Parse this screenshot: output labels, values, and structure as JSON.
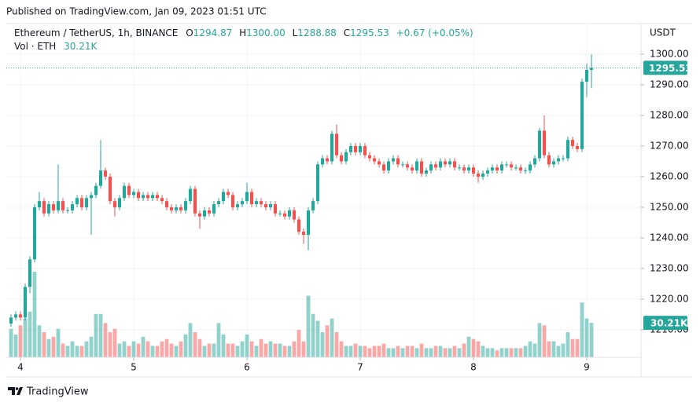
{
  "published": "Published on TradingView.com, Jan 09, 2023 01:51 UTC",
  "brand": "TradingView",
  "chart_data": {
    "type": "candlestick",
    "title": "Ethereum / TetherUS, 1h, BINANCE",
    "ohlc_prefixes": [
      "O",
      "H",
      "L",
      "C"
    ],
    "last_labels": {
      "open": "1294.87",
      "high": "1300.00",
      "low": "1288.88",
      "close": "1295.53"
    },
    "change": "+0.67 (+0.05%)",
    "currency": "USDT",
    "up_color": "#26a69a",
    "down_color": "#ef5350",
    "x": [
      -2,
      -1,
      0,
      1,
      2,
      3,
      4,
      5,
      6,
      7,
      8,
      9,
      10,
      11,
      12,
      13,
      14,
      15,
      16,
      17,
      18,
      19,
      20,
      21,
      22,
      23,
      24,
      25,
      26,
      27,
      28,
      29,
      30,
      31,
      32,
      33,
      34,
      35,
      36,
      37,
      38,
      39,
      40,
      41,
      42,
      43,
      44,
      45,
      46,
      47,
      48,
      49,
      50,
      51,
      52,
      53,
      54,
      55,
      56,
      57,
      58,
      59,
      60,
      61,
      62,
      63,
      64,
      65,
      66,
      67,
      68,
      69,
      70,
      71,
      72,
      73,
      74,
      75,
      76,
      77,
      78,
      79,
      80,
      81,
      82,
      83,
      84,
      85,
      86,
      87,
      88,
      89,
      90,
      91,
      92,
      93,
      94,
      95,
      96,
      97,
      98,
      99,
      100,
      101,
      102,
      103,
      104,
      105,
      106,
      107,
      108,
      109,
      110,
      111,
      112,
      113,
      114,
      115,
      116,
      117,
      118,
      119,
      120,
      121
    ],
    "open": [
      1212,
      1214,
      1215,
      1214,
      1224,
      1233,
      1250,
      1252,
      1248,
      1251,
      1249,
      1252,
      1249,
      1249,
      1251,
      1253,
      1250,
      1253,
      1254,
      1257,
      1262,
      1260,
      1252,
      1250,
      1253,
      1257,
      1254,
      1255,
      1253,
      1254,
      1253,
      1254,
      1253,
      1252,
      1250,
      1249,
      1250,
      1249,
      1252,
      1256,
      1248,
      1247,
      1249,
      1248,
      1251,
      1252,
      1255,
      1254,
      1250,
      1251,
      1252,
      1255,
      1251,
      1252,
      1251,
      1250,
      1251,
      1248,
      1248,
      1247,
      1249,
      1246,
      1242,
      1241,
      1249,
      1252,
      1264,
      1266,
      1265,
      1274,
      1267,
      1265,
      1268,
      1270,
      1268,
      1270,
      1267,
      1266,
      1265,
      1264,
      1262,
      1265,
      1266,
      1264,
      1264,
      1263,
      1262,
      1265,
      1261,
      1262,
      1264,
      1263,
      1265,
      1264,
      1265,
      1263,
      1263,
      1262,
      1263,
      1261,
      1260,
      1261,
      1262,
      1263,
      1262,
      1264,
      1264,
      1263,
      1263,
      1262,
      1262,
      1264,
      1266,
      1275,
      1267,
      1264,
      1265,
      1266,
      1266,
      1272,
      1270,
      1269,
      1291,
      1294.87
    ],
    "high": [
      1215,
      1216,
      1216,
      1225,
      1234,
      1251,
      1255,
      1253,
      1252,
      1252,
      1264,
      1253,
      1250,
      1252,
      1254,
      1254,
      1254,
      1255,
      1258,
      1272,
      1263,
      1261,
      1253,
      1254,
      1258,
      1258,
      1256,
      1256,
      1255,
      1255,
      1255,
      1255,
      1254,
      1253,
      1251,
      1251,
      1251,
      1253,
      1257,
      1257,
      1249,
      1250,
      1250,
      1252,
      1253,
      1256,
      1256,
      1255,
      1252,
      1253,
      1258,
      1256,
      1253,
      1253,
      1252,
      1252,
      1252,
      1249,
      1249,
      1250,
      1250,
      1247,
      1243,
      1250,
      1253,
      1265,
      1267,
      1267,
      1275,
      1277,
      1268,
      1269,
      1271,
      1271,
      1271,
      1271,
      1268,
      1267,
      1266,
      1265,
      1266,
      1267,
      1267,
      1265,
      1265,
      1264,
      1266,
      1266,
      1263,
      1265,
      1265,
      1266,
      1266,
      1266,
      1266,
      1264,
      1264,
      1264,
      1264,
      1262,
      1262,
      1263,
      1264,
      1264,
      1265,
      1265,
      1265,
      1264,
      1264,
      1263,
      1265,
      1267,
      1276,
      1280,
      1268,
      1266,
      1267,
      1267,
      1273,
      1273,
      1271,
      1292,
      1297,
      1300
    ],
    "low": [
      1211,
      1213,
      1213,
      1213,
      1222,
      1232,
      1249,
      1247,
      1247,
      1248,
      1248,
      1248,
      1248,
      1248,
      1250,
      1249,
      1249,
      1241,
      1253,
      1256,
      1259,
      1251,
      1247,
      1249,
      1252,
      1253,
      1253,
      1252,
      1252,
      1252,
      1252,
      1252,
      1251,
      1249,
      1248,
      1248,
      1248,
      1248,
      1251,
      1247,
      1243,
      1246,
      1247,
      1247,
      1250,
      1251,
      1253,
      1249,
      1249,
      1250,
      1251,
      1250,
      1250,
      1250,
      1249,
      1249,
      1247,
      1247,
      1246,
      1246,
      1245,
      1241,
      1238,
      1236,
      1248,
      1251,
      1263,
      1264,
      1264,
      1266,
      1264,
      1264,
      1267,
      1267,
      1267,
      1266,
      1265,
      1264,
      1263,
      1261,
      1261,
      1264,
      1263,
      1263,
      1262,
      1261,
      1261,
      1260,
      1260,
      1261,
      1262,
      1262,
      1263,
      1263,
      1262,
      1262,
      1261,
      1261,
      1260,
      1258,
      1259,
      1260,
      1261,
      1261,
      1261,
      1263,
      1262,
      1262,
      1261,
      1261,
      1261,
      1263,
      1265,
      1266,
      1263,
      1263,
      1264,
      1265,
      1265,
      1269,
      1268,
      1268,
      1286,
      1288.88
    ],
    "close": [
      1214,
      1215,
      1214,
      1224,
      1233,
      1250,
      1252,
      1248,
      1251,
      1249,
      1252,
      1249,
      1249,
      1251,
      1253,
      1250,
      1253,
      1254,
      1257,
      1262,
      1260,
      1252,
      1250,
      1253,
      1257,
      1254,
      1255,
      1253,
      1254,
      1253,
      1254,
      1253,
      1252,
      1250,
      1249,
      1250,
      1249,
      1252,
      1256,
      1248,
      1247,
      1249,
      1248,
      1251,
      1252,
      1255,
      1254,
      1250,
      1251,
      1252,
      1255,
      1251,
      1252,
      1251,
      1250,
      1251,
      1248,
      1248,
      1247,
      1249,
      1246,
      1242,
      1241,
      1249,
      1252,
      1264,
      1266,
      1265,
      1274,
      1267,
      1265,
      1268,
      1270,
      1268,
      1270,
      1267,
      1266,
      1265,
      1264,
      1262,
      1265,
      1266,
      1264,
      1264,
      1263,
      1262,
      1265,
      1261,
      1262,
      1264,
      1263,
      1265,
      1264,
      1265,
      1263,
      1263,
      1262,
      1263,
      1261,
      1260,
      1261,
      1262,
      1263,
      1262,
      1264,
      1264,
      1263,
      1263,
      1262,
      1262,
      1264,
      1266,
      1275,
      1267,
      1264,
      1265,
      1266,
      1266,
      1272,
      1270,
      1269,
      1291,
      1294.87,
      1295.53
    ],
    "volume": {
      "name": "Vol · ETH",
      "values": [
        25,
        20,
        28,
        34,
        40,
        75,
        28,
        22,
        16,
        18,
        25,
        12,
        10,
        14,
        10,
        10,
        14,
        18,
        38,
        38,
        30,
        22,
        25,
        12,
        14,
        10,
        14,
        12,
        18,
        14,
        10,
        10,
        14,
        16,
        12,
        10,
        14,
        20,
        30,
        22,
        16,
        10,
        12,
        12,
        30,
        20,
        12,
        12,
        10,
        14,
        20,
        14,
        10,
        16,
        12,
        14,
        12,
        12,
        10,
        10,
        14,
        24,
        14,
        54,
        38,
        32,
        22,
        28,
        34,
        22,
        14,
        10,
        10,
        12,
        10,
        10,
        8,
        10,
        10,
        12,
        8,
        8,
        10,
        8,
        10,
        10,
        8,
        12,
        8,
        8,
        10,
        10,
        8,
        8,
        10,
        8,
        12,
        18,
        16,
        14,
        10,
        8,
        8,
        6,
        8,
        8,
        8,
        8,
        8,
        10,
        14,
        12,
        30,
        28,
        14,
        14,
        10,
        12,
        22,
        16,
        16,
        48,
        34,
        30.21
      ],
      "value_labels": {
        "123": "30.21K"
      }
    },
    "xlim": [
      -3,
      131.5
    ],
    "xticks": [
      {
        "value": 0,
        "label": "4"
      },
      {
        "value": 24,
        "label": "5"
      },
      {
        "value": 48,
        "label": "6"
      },
      {
        "value": 72,
        "label": "7"
      },
      {
        "value": 96,
        "label": "8"
      },
      {
        "value": 120,
        "label": "9"
      }
    ],
    "ylim": [
      1201,
      1310
    ],
    "yticks": [
      {
        "value": 1210,
        "label": "1210.00"
      },
      {
        "value": 1220,
        "label": "1220.00"
      },
      {
        "value": 1230,
        "label": "1230.00"
      },
      {
        "value": 1240,
        "label": "1240.00"
      },
      {
        "value": 1250,
        "label": "1250.00"
      },
      {
        "value": 1260,
        "label": "1260.00"
      },
      {
        "value": 1270,
        "label": "1270.00"
      },
      {
        "value": 1280,
        "label": "1280.00"
      },
      {
        "value": 1290,
        "label": "1290.00"
      },
      {
        "value": 1300,
        "label": "1300.00"
      }
    ],
    "grid": true
  }
}
